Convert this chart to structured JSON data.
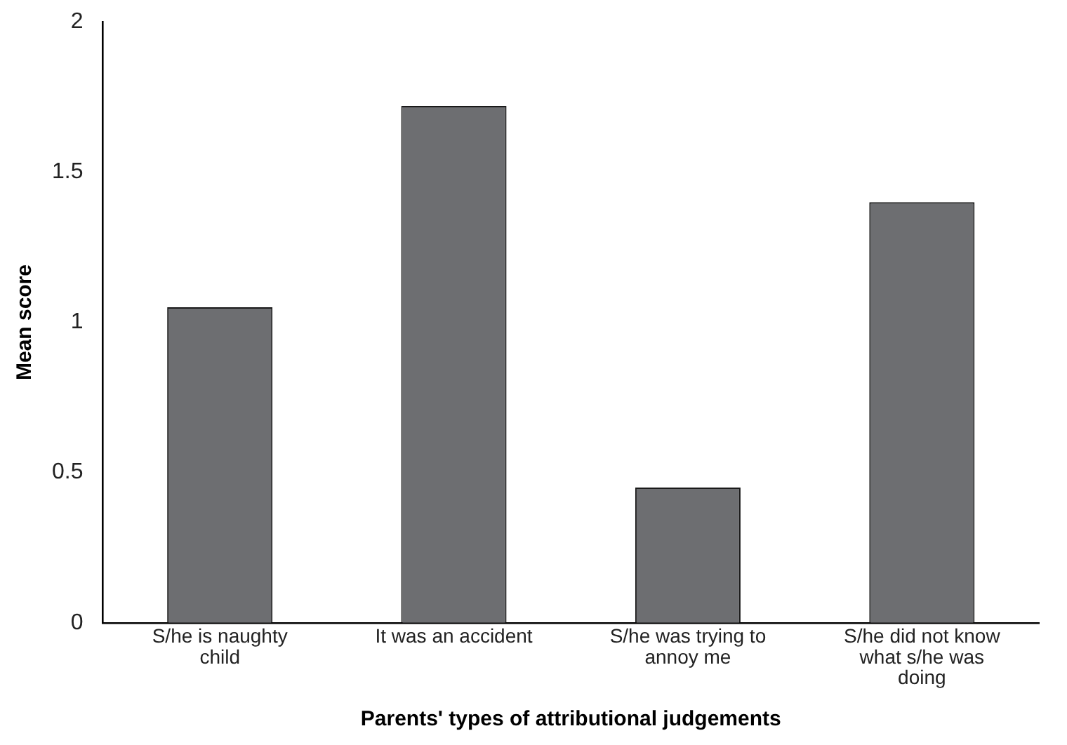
{
  "chart_data": {
    "type": "bar",
    "xlabel": "Parents' types of attributional judgements",
    "ylabel": "Mean score",
    "categories": [
      "S/he is naughty child",
      "It was an accident",
      "S/he was trying to annoy me",
      "S/he did not know what s/he was doing"
    ],
    "values": [
      1.05,
      1.72,
      0.45,
      1.4
    ],
    "color": "#6d6e71",
    "ylim": [
      0,
      2
    ],
    "yticks": [
      0,
      0.5,
      1,
      1.5,
      2
    ],
    "grid": false,
    "legend": false
  }
}
